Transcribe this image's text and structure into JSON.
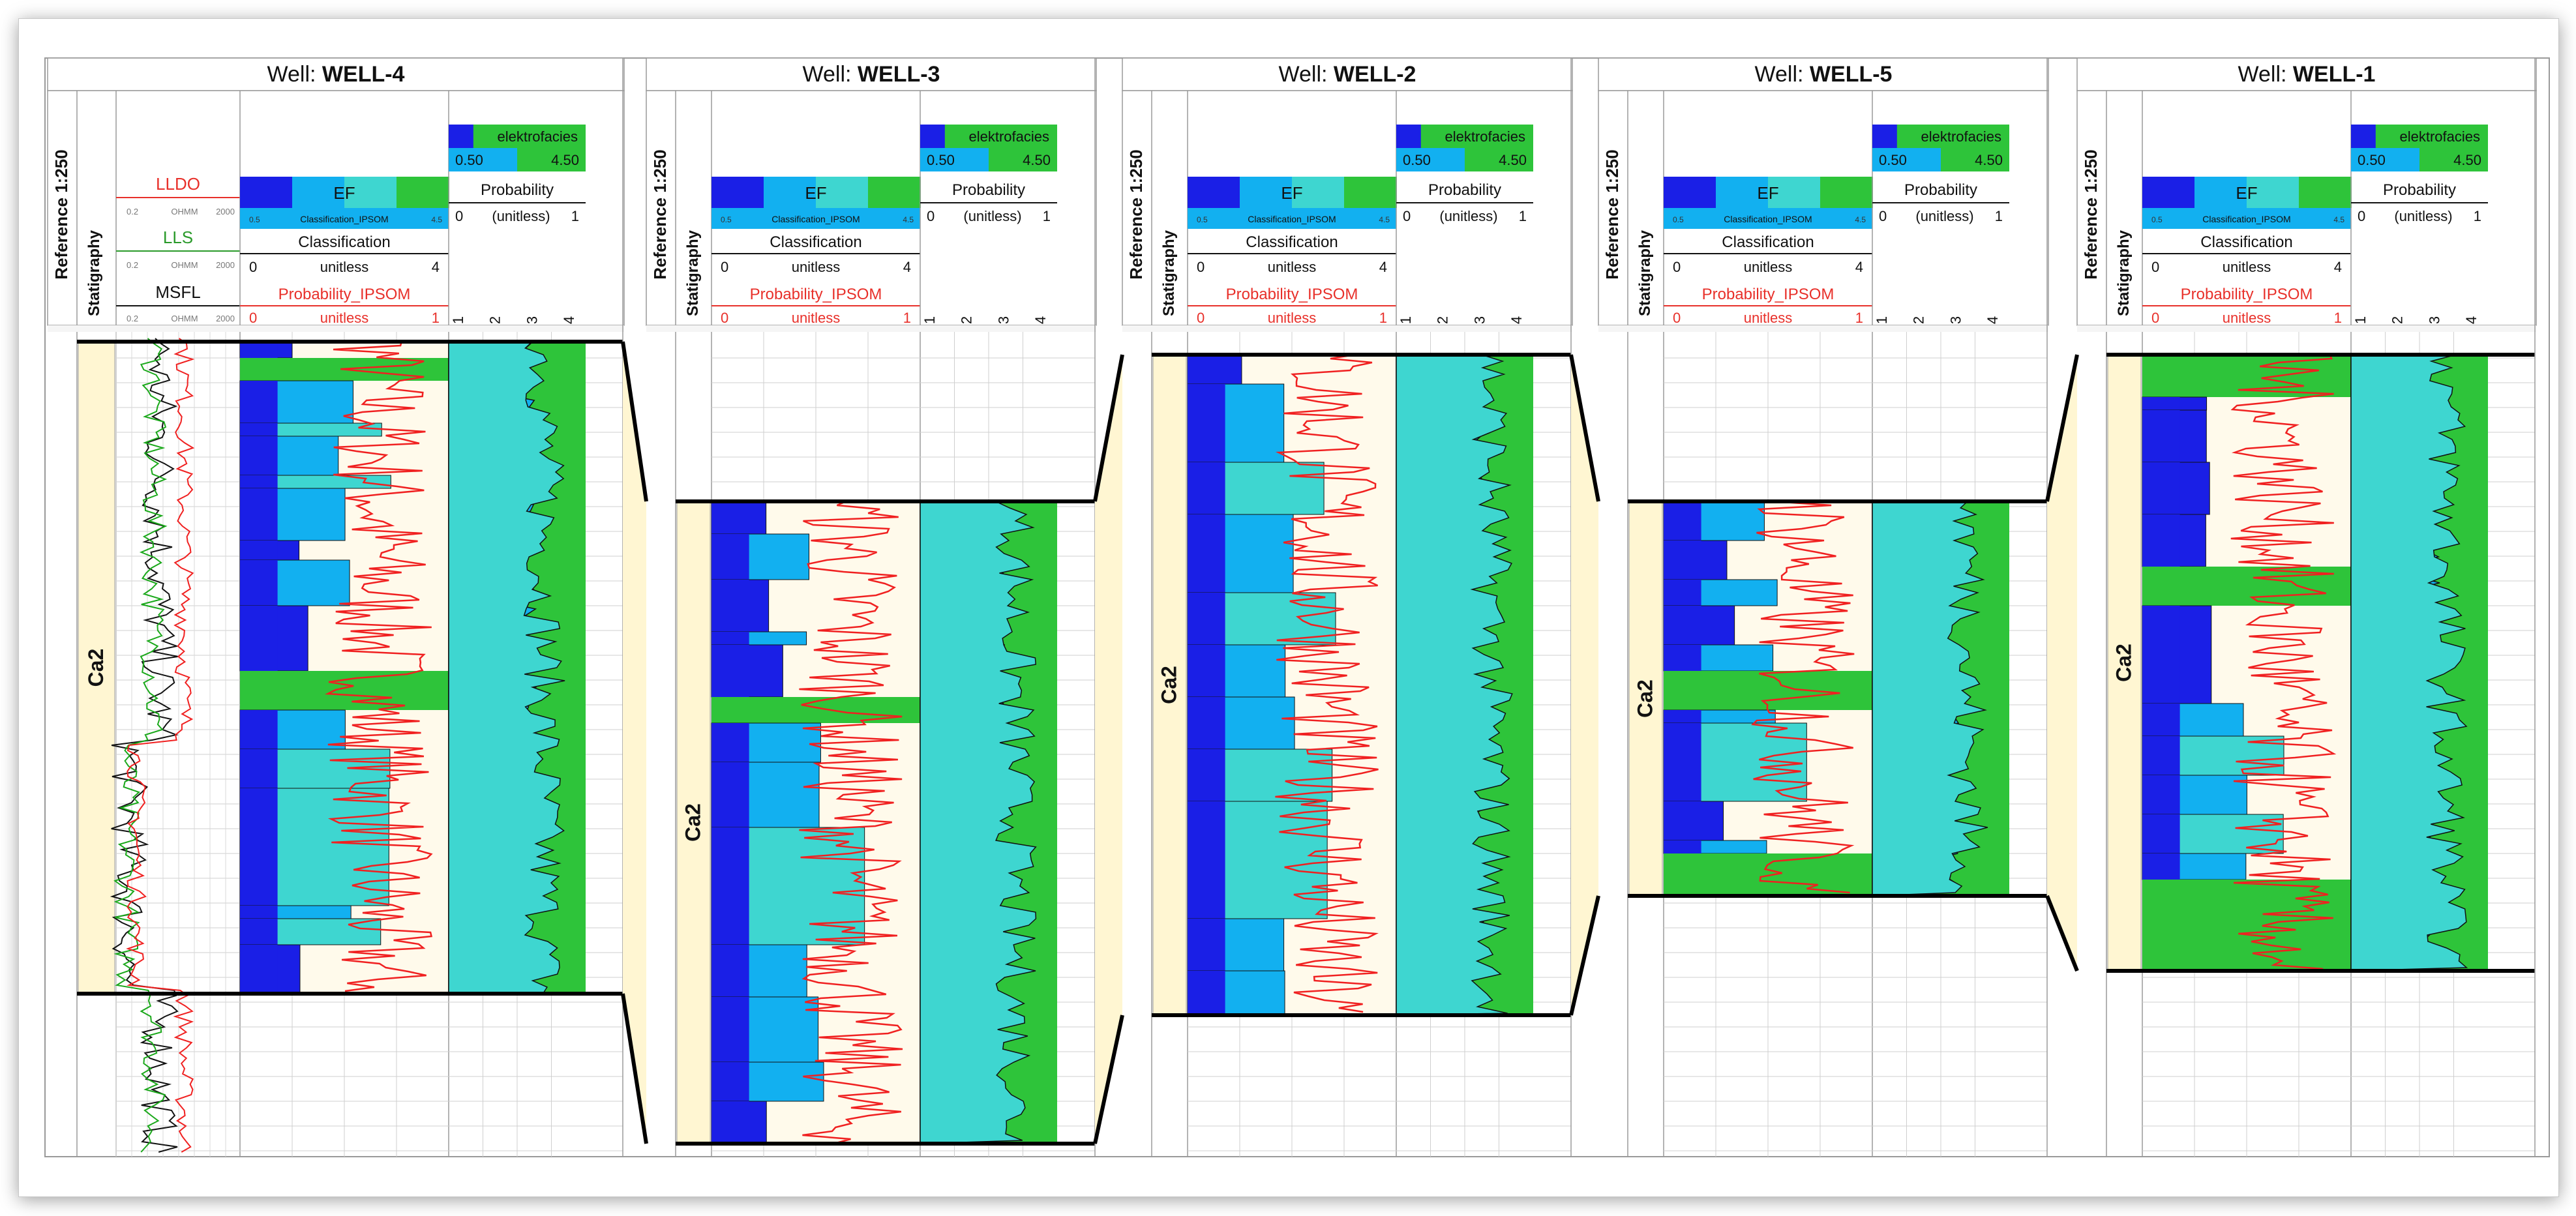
{
  "colors": {
    "fill_blue": "#1a1fe6",
    "fill_sky": "#12b0f0",
    "fill_cyan": "#3ed6d0",
    "fill_green": "#2ec43a",
    "curve_red": "#f02020",
    "curve_green": "#1aa81a",
    "curve_black": "#111111",
    "strat_fill": "#fff6d2",
    "panel_fill": "#fffaeb",
    "grid": "#cfcfcf",
    "header_red": "#e8302a",
    "header_green": "#2a9a2a"
  },
  "labels": {
    "reference": "Reference 1:250",
    "stratigraphy": "Statigraphy",
    "ef_title": "EF",
    "ef_min": "0.5",
    "ef_max": "4.5",
    "ef_curve": "Classification_IPSOM",
    "classification": "Classification",
    "class_min": "0",
    "class_unit": "unitless",
    "class_max": "4",
    "prob_ipsom": "Probability_IPSOM",
    "prob_ipsom_min": "0",
    "prob_ipsom_unit": "unitless",
    "prob_ipsom_max": "1",
    "elektrofacies": "elektrofacies",
    "elek_min": "0.50",
    "elek_max": "4.50",
    "probability": "Probability",
    "prob_min": "0",
    "prob_unit": "(unitless)",
    "prob_max": "1",
    "ticks": [
      "1",
      "2",
      "3",
      "4"
    ],
    "llds": "LLDO",
    "lls": "LLS",
    "msfl": "MSFL",
    "res_min": "0.2",
    "res_unit": "OHMM",
    "res_max": "2000",
    "zone": "Ca2",
    "well_prefix": "Well:"
  },
  "wells": [
    {
      "name": "WELL-4",
      "has_resistivity": true
    },
    {
      "name": "WELL-3",
      "has_resistivity": false
    },
    {
      "name": "WELL-2",
      "has_resistivity": false
    },
    {
      "name": "WELL-5",
      "has_resistivity": false
    },
    {
      "name": "WELL-1",
      "has_resistivity": false
    }
  ]
}
